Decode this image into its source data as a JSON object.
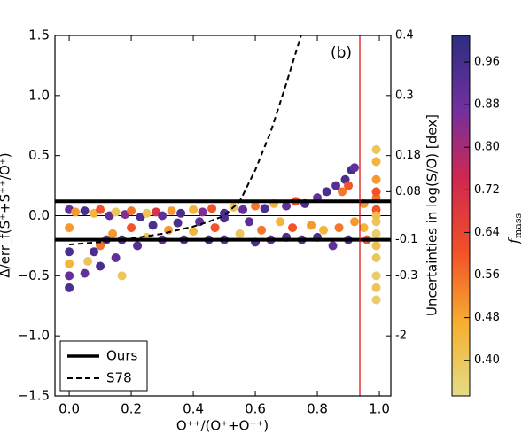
{
  "chart_data": {
    "type": "scatter",
    "annotation": "(b)",
    "xlabel": "O⁺⁺/(O⁺+O⁺⁺)",
    "ylabel": "Δ/err_f(S⁺+S⁺⁺/O⁺)",
    "y2label": "Uncertainties in log(S/O) [dex]",
    "xlim": [
      -0.046,
      1.037
    ],
    "ylim": [
      -1.5,
      1.5
    ],
    "xticks": [
      {
        "value": 0,
        "label": "0.0"
      },
      {
        "value": 0.2,
        "label": "0.2"
      },
      {
        "value": 0.4,
        "label": "0.4"
      },
      {
        "value": 0.6,
        "label": "0.6"
      },
      {
        "value": 0.8,
        "label": "0.8"
      },
      {
        "value": 1,
        "label": "1.0"
      }
    ],
    "yticks": [
      {
        "value": 1.5,
        "label": "1.5"
      },
      {
        "value": 1,
        "label": "1.0"
      },
      {
        "value": 0.5,
        "label": "0.5"
      },
      {
        "value": 0,
        "label": "0.0"
      },
      {
        "value": -0.5,
        "label": "−0.5"
      },
      {
        "value": -1,
        "label": "−1.0"
      },
      {
        "value": -1.5,
        "label": "−1.5"
      }
    ],
    "y2ticks": [
      0.4,
      0.3,
      0.18,
      0.08,
      -0.1,
      -0.3,
      -2
    ],
    "y2tick_positions": [
      1.5,
      1.0,
      0.5,
      0.2,
      -0.2,
      -0.5,
      -1.0
    ],
    "colorbar": {
      "label": {
        "symbol": "f",
        "subscript": "mass"
      },
      "lim": [
        0.333,
        1.01
      ],
      "colormap": [
        "#e4dc86",
        "#f5b030",
        "#f25028",
        "#d02850",
        "#7030a0",
        "#2c2e80"
      ],
      "ticks": [
        {
          "value": 0.4,
          "label": "0.40"
        },
        {
          "value": 0.48,
          "label": "0.48"
        },
        {
          "value": 0.56,
          "label": "0.56"
        },
        {
          "value": 0.64,
          "label": "0.64"
        },
        {
          "value": 0.72,
          "label": "0.72"
        },
        {
          "value": 0.8,
          "label": "0.80"
        },
        {
          "value": 0.88,
          "label": "0.88"
        },
        {
          "value": 0.96,
          "label": "0.96"
        }
      ]
    },
    "points": {
      "x": [
        0.0,
        0.02,
        0.05,
        0.08,
        0.1,
        0.13,
        0.15,
        0.18,
        0.2,
        0.23,
        0.25,
        0.28,
        0.3,
        0.33,
        0.36,
        0.4,
        0.43,
        0.46,
        0.5,
        0.53,
        0.56,
        0.6,
        0.63,
        0.66,
        0.7,
        0.73,
        0.76,
        0.8,
        0.83,
        0.86,
        0.89,
        0.91,
        0.92,
        0.88,
        0.9,
        0.0,
        0.0,
        0.0,
        0.0,
        0.0,
        0.05,
        0.06,
        0.08,
        0.1,
        0.1,
        0.12,
        0.14,
        0.15,
        0.17,
        0.17,
        0.2,
        0.22,
        0.25,
        0.27,
        0.3,
        0.32,
        0.35,
        0.37,
        0.4,
        0.42,
        0.45,
        0.47,
        0.5,
        0.5,
        0.55,
        0.58,
        0.6,
        0.62,
        0.65,
        0.68,
        0.7,
        0.72,
        0.75,
        0.78,
        0.8,
        0.82,
        0.85,
        0.87,
        0.9,
        0.92,
        0.95,
        0.95,
        0.96,
        0.99,
        0.99,
        0.99,
        0.99,
        0.99,
        0.99,
        0.99,
        0.99,
        0.99,
        0.99,
        0.99,
        0.99,
        0.99,
        0.99
      ],
      "values": [
        0.05,
        0.03,
        0.04,
        0.02,
        0.05,
        0.0,
        0.03,
        0.01,
        0.04,
        -0.01,
        0.02,
        0.03,
        0.0,
        0.04,
        0.02,
        0.05,
        0.03,
        0.06,
        0.02,
        0.07,
        0.05,
        0.08,
        0.06,
        0.1,
        0.08,
        0.12,
        0.1,
        0.15,
        0.2,
        0.25,
        0.3,
        0.38,
        0.4,
        0.2,
        0.25,
        -0.6,
        -0.5,
        -0.4,
        -0.3,
        -0.1,
        -0.48,
        -0.38,
        -0.3,
        -0.25,
        -0.42,
        -0.2,
        -0.15,
        -0.35,
        -0.5,
        -0.2,
        -0.1,
        -0.25,
        -0.18,
        -0.08,
        -0.2,
        -0.12,
        -0.06,
        -0.2,
        -0.13,
        -0.05,
        -0.2,
        -0.1,
        -0.02,
        -0.2,
        -0.15,
        -0.05,
        -0.22,
        -0.12,
        -0.2,
        -0.05,
        -0.18,
        -0.1,
        -0.2,
        -0.08,
        -0.18,
        -0.12,
        -0.25,
        -0.1,
        -0.2,
        -0.05,
        -0.1,
        0.1,
        -0.2,
        0.55,
        0.45,
        0.3,
        0.15,
        0.05,
        -0.05,
        -0.15,
        -0.25,
        -0.35,
        -0.5,
        -0.6,
        -0.7,
        0.2,
        0.0
      ],
      "color_values": [
        0.9,
        0.5,
        0.95,
        0.45,
        0.6,
        0.9,
        0.4,
        0.85,
        0.55,
        0.95,
        0.4,
        0.7,
        0.9,
        0.5,
        0.95,
        0.45,
        0.85,
        0.6,
        0.95,
        0.4,
        0.9,
        0.55,
        0.95,
        0.45,
        0.9,
        0.6,
        0.95,
        0.9,
        0.95,
        0.92,
        0.95,
        0.96,
        0.9,
        0.55,
        0.6,
        0.95,
        0.9,
        0.45,
        0.95,
        0.5,
        0.9,
        0.4,
        0.95,
        0.55,
        0.95,
        0.9,
        0.5,
        0.9,
        0.4,
        0.95,
        0.6,
        0.92,
        0.4,
        0.95,
        0.9,
        0.5,
        0.95,
        0.92,
        0.45,
        0.9,
        0.95,
        0.6,
        0.95,
        0.9,
        0.4,
        0.92,
        0.95,
        0.55,
        0.9,
        0.45,
        0.95,
        0.6,
        0.92,
        0.5,
        0.95,
        0.45,
        0.9,
        0.55,
        0.95,
        0.5,
        0.45,
        0.5,
        0.6,
        0.4,
        0.45,
        0.5,
        0.55,
        0.6,
        0.4,
        0.38,
        0.42,
        0.4,
        0.38,
        0.4,
        0.38,
        0.6,
        0.42
      ]
    },
    "lines": [
      {
        "name": "Ours",
        "style": "solid",
        "color": "#000000",
        "y": [
          0.12,
          -0.2
        ]
      },
      {
        "name": "S78",
        "style": "dashed",
        "color": "#000000",
        "x": [
          0,
          0.1,
          0.2,
          0.3,
          0.4,
          0.45,
          0.5,
          0.55,
          0.6,
          0.65,
          0.7,
          0.75
        ],
        "values": [
          -0.24,
          -0.22,
          -0.19,
          -0.15,
          -0.09,
          -0.05,
          0.0,
          0.12,
          0.38,
          0.7,
          1.1,
          1.52
        ]
      }
    ],
    "zero_line": 0,
    "vline": {
      "x": 0.937,
      "color": "#e00000"
    }
  }
}
